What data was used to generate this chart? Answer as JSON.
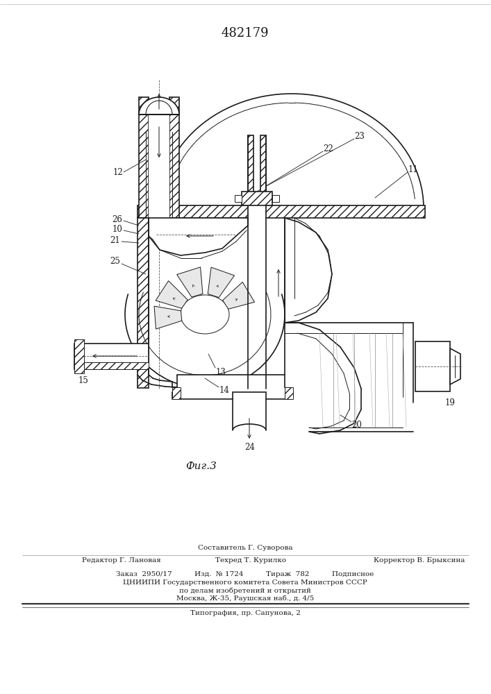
{
  "title_number": "482179",
  "figure_caption": "Фиг.3",
  "footer_line1": "Составитель Г. Суворова",
  "footer_line2_left": "Редактор Г. Лановая",
  "footer_line2_mid": "Техред Т. Курилко",
  "footer_line2_right": "Корректор В. Брыксина",
  "footer_line3": "Заказ  2950/17          Изд.  № 1724          Тираж  782          Подписное",
  "footer_line4": "ЦНИИПИ Государственного комитета Совета Министров СССР",
  "footer_line5": "по делам изобретений и открытий",
  "footer_line6": "Москва, Ж-35, Раушская наб., д. 4/5",
  "footer_line7": "Типография, пр. Сапунова, 2",
  "bg_color": "#ffffff",
  "line_color": "#1a1a1a"
}
